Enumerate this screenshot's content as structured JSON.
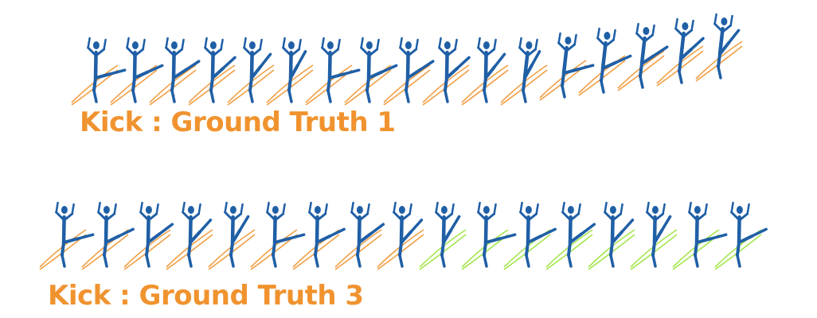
{
  "rows": [
    {
      "caption": "Kick : Ground Truth 1",
      "frames": 17,
      "trail_color": "#F0932F"
    },
    {
      "caption": "Kick : Ground Truth 3",
      "frames": 17,
      "observed_frames": 8,
      "trail_color": "#F0932F",
      "predicted_trail_color": "#9AE23A"
    }
  ],
  "colors": {
    "figure": "#1F5FA6",
    "caption": "#F0932F"
  }
}
